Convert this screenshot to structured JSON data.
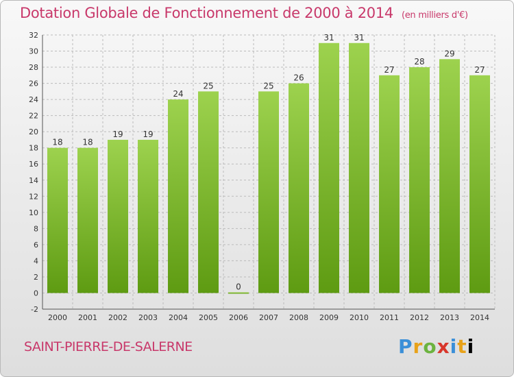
{
  "title": "Dotation Globale de Fonctionnement de 2000 à 2014",
  "subtitle": "(en milliers d'€)",
  "commune": "SAINT-PIERRE-DE-SALERNE",
  "logo": "Proxiti",
  "colors": {
    "bar_light": "#9dd24e",
    "bar_dark": "#5e9b12",
    "title": "#c8386a",
    "grid": "#bbbbbb"
  },
  "chart_data": {
    "type": "bar",
    "categories": [
      "2000",
      "2001",
      "2002",
      "2003",
      "2004",
      "2005",
      "2006",
      "2007",
      "2008",
      "2009",
      "2010",
      "2011",
      "2012",
      "2013",
      "2014"
    ],
    "values": [
      18,
      18,
      19,
      19,
      24,
      25,
      0,
      25,
      26,
      31,
      31,
      27,
      28,
      29,
      27
    ],
    "ylim": [
      -2,
      32
    ],
    "yticks": [
      -2,
      0,
      2,
      4,
      6,
      8,
      10,
      12,
      14,
      16,
      18,
      20,
      22,
      24,
      26,
      28,
      30,
      32
    ],
    "grid": true,
    "data_labels": true
  }
}
